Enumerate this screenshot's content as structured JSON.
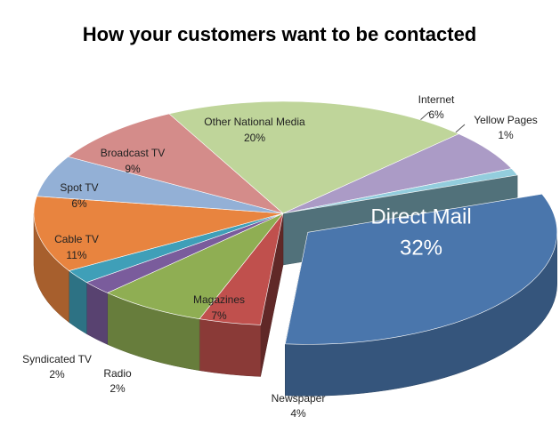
{
  "chart_data": {
    "type": "pie",
    "title": "How your customers want to be contacted",
    "categories": [
      "Direct Mail",
      "Newspaper",
      "Magazines",
      "Radio",
      "Syndicated TV",
      "Cable TV",
      "Spot TV",
      "Broadcast TV",
      "Other National Media",
      "Internet",
      "Yellow Pages"
    ],
    "values": [
      32,
      4,
      7,
      2,
      2,
      11,
      6,
      9,
      20,
      6,
      1
    ],
    "value_labels": [
      "32%",
      "4%",
      "7%",
      "2%",
      "2%",
      "11%",
      "6%",
      "9%",
      "20%",
      "6%",
      "1%"
    ],
    "colors": [
      "#4a76ac",
      "#c0504d",
      "#8fae53",
      "#7a5c9c",
      "#3f9fb8",
      "#e8843f",
      "#93b0d6",
      "#d48c8a",
      "#bfd59a",
      "#ab9bc6",
      "#93cddd"
    ]
  }
}
